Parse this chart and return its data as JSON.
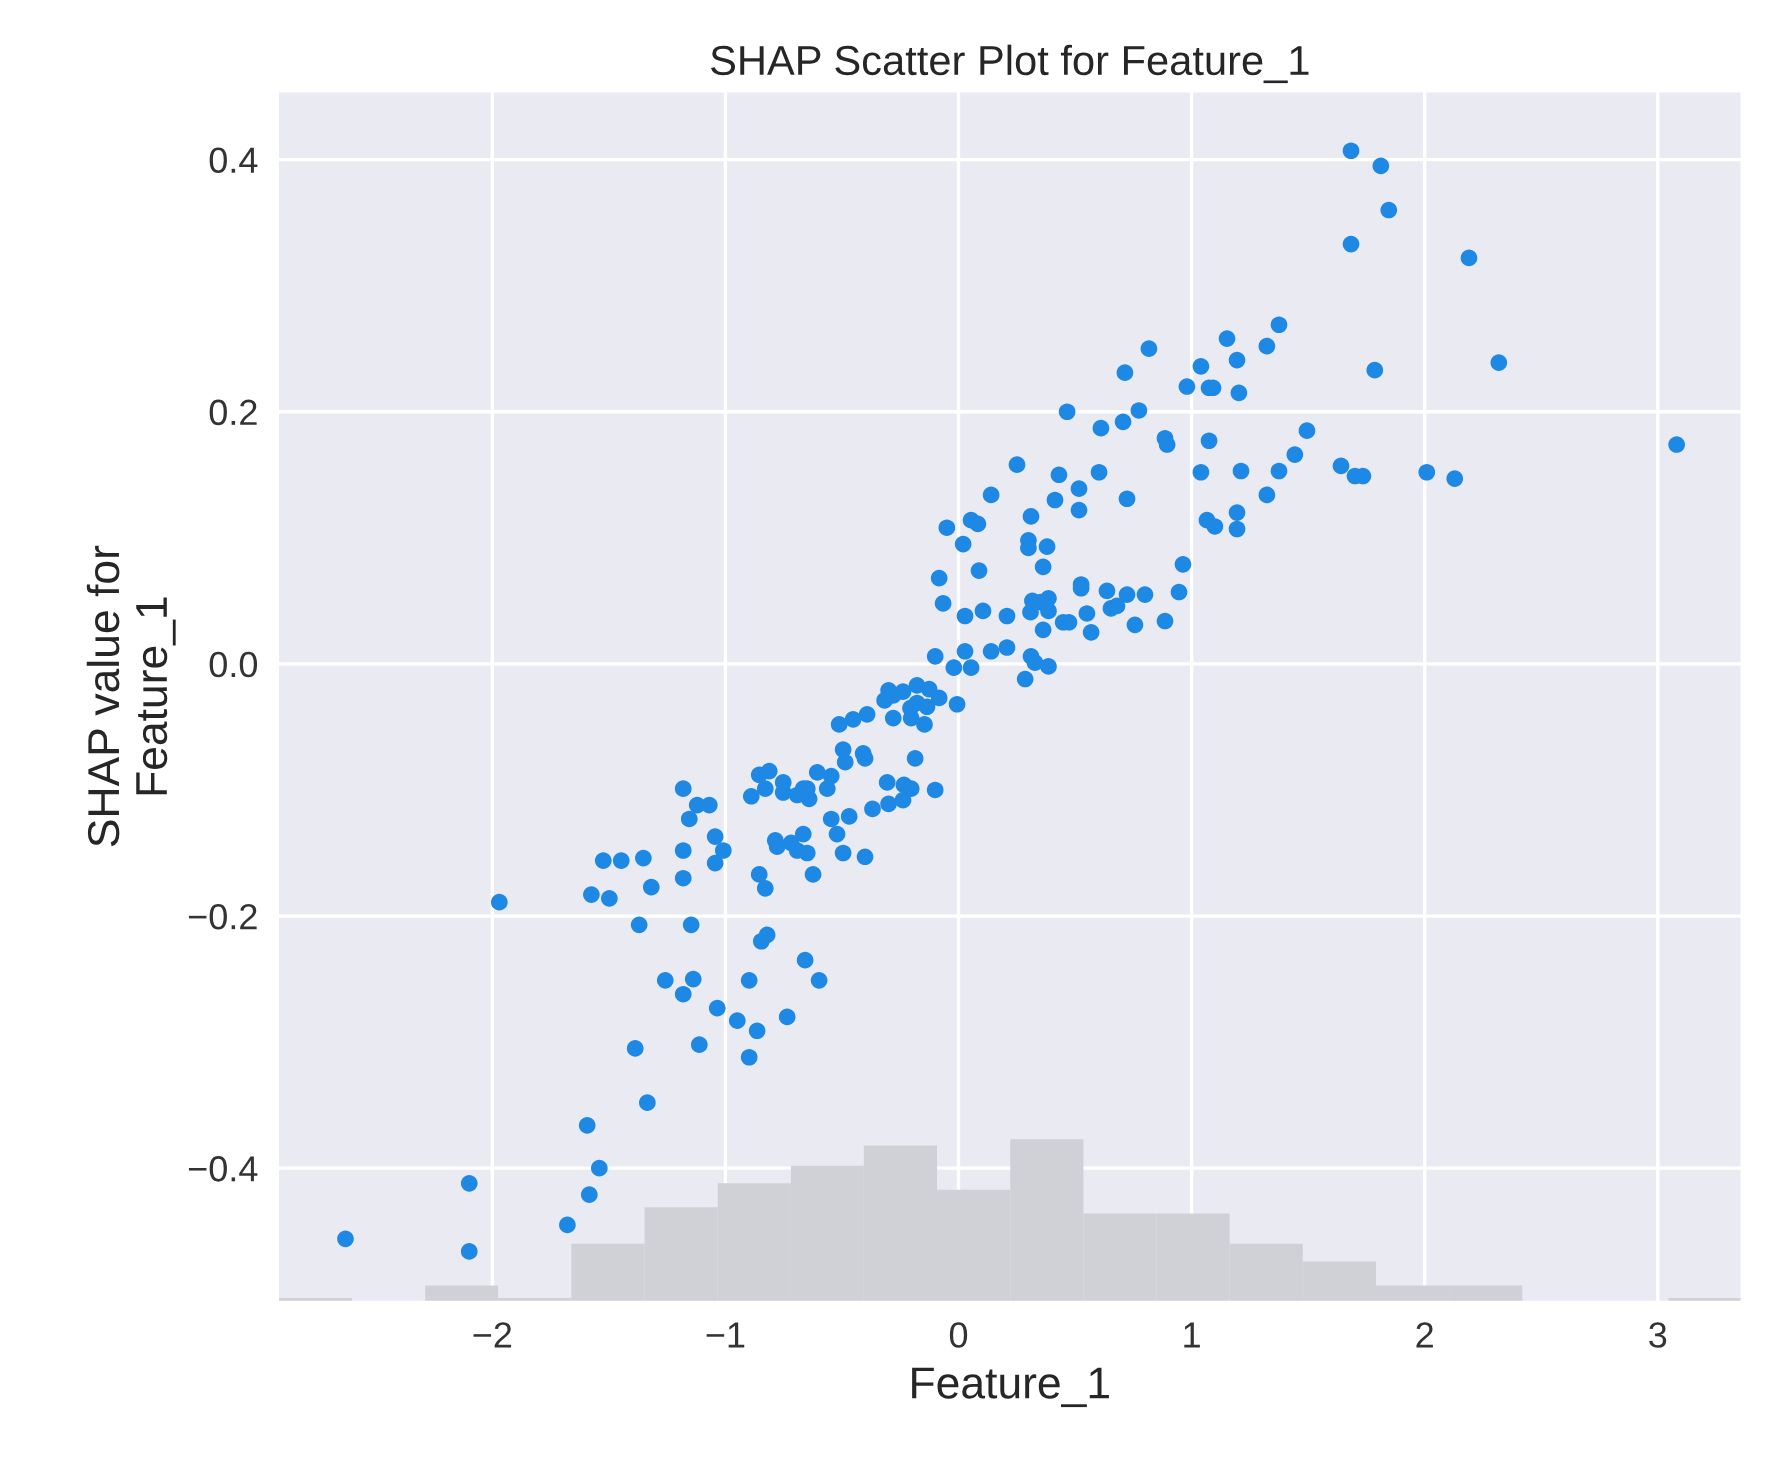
{
  "chart_data": {
    "type": "scatter",
    "title": "SHAP Scatter Plot for Feature_1",
    "xlabel": "Feature_1",
    "ylabel": "SHAP value for\nFeature_1",
    "xlim": [
      -2.92,
      3.36
    ],
    "ylim": [
      -0.506,
      0.454
    ],
    "xticks": [
      {
        "value": -2,
        "label": "−2"
      },
      {
        "value": -1,
        "label": "−1"
      },
      {
        "value": 0,
        "label": "0"
      },
      {
        "value": 1,
        "label": "1"
      },
      {
        "value": 2,
        "label": "2"
      },
      {
        "value": 3,
        "label": "3"
      }
    ],
    "yticks": [
      {
        "value": -0.4,
        "label": "−0.4"
      },
      {
        "value": -0.2,
        "label": "−0.2"
      },
      {
        "value": 0,
        "label": "0.0"
      },
      {
        "value": 0.2,
        "label": "0.2"
      },
      {
        "value": 0.4,
        "label": "0.4"
      }
    ],
    "grid": true,
    "marker": "circle",
    "series": [
      {
        "type": "histogram",
        "color": "#d0d1d6",
        "bins": [
          -2.916,
          -2.602,
          -2.288,
          -1.975,
          -1.661,
          -1.347,
          -1.033,
          -0.719,
          -0.406,
          -0.092,
          0.222,
          0.536,
          0.85,
          1.163,
          1.477,
          1.791,
          2.105,
          2.419,
          2.732,
          3.046,
          3.36
        ],
        "base": [
          -0.506,
          null,
          -0.506,
          -0.506,
          -0.506,
          -0.506,
          -0.506,
          -0.506,
          -0.506,
          -0.506,
          -0.506,
          -0.506,
          -0.506,
          -0.506,
          -0.506,
          -0.506,
          -0.506,
          null,
          null,
          -0.506
        ],
        "values": [
          0.003,
          null,
          0.013,
          0.003,
          0.046,
          0.075,
          0.094,
          0.108,
          0.124,
          0.089,
          0.129,
          0.07,
          0.07,
          0.046,
          0.032,
          0.013,
          0.013,
          null,
          null,
          0.003
        ]
      },
      {
        "color": "#1e88e5",
        "x": [
          -0.05,
          0.02,
          0.054,
          0.083,
          -0.083,
          0.088,
          -0.066,
          0.028,
          -0.1,
          0.028,
          -0.02,
          0.054,
          1.684,
          1.812,
          1.846,
          1.684,
          2.19,
          2.318,
          1.786,
          1.375,
          1.323,
          1.152,
          1.195,
          1.203,
          1.04,
          0.98,
          1.075,
          1.092,
          0.817,
          0.714,
          0.466,
          0.774,
          0.706,
          0.611,
          0.886,
          0.895,
          1.075,
          1.495,
          1.443,
          1.375,
          1.212,
          1.04,
          1.641,
          1.701,
          1.735,
          2.009,
          2.129,
          3.081,
          1.323,
          1.195,
          1.195,
          1.066,
          1.1,
          0.963,
          0.946,
          0.886,
          0.8,
          0.723,
          0.637,
          0.654,
          0.68,
          0.757,
          0.526,
          0.526,
          0.551,
          0.569,
          0.449,
          0.474,
          0.363,
          0.317,
          0.386,
          0.352,
          0.309,
          0.386,
          0.363,
          0.38,
          0.3,
          0.3,
          0.311,
          0.414,
          0.517,
          0.517,
          0.431,
          0.603,
          0.723,
          0.251,
          0.14,
          0.105,
          0.208,
          0.208,
          0.14,
          0.286,
          0.311,
          0.328,
          0.386,
          -0.178,
          -0.126,
          -0.3,
          -0.238,
          -0.317,
          -0.28,
          -0.178,
          -0.135,
          -0.083,
          -0.203,
          -0.146,
          -0.006,
          -0.28,
          -0.206,
          -0.392,
          -0.452,
          -0.512,
          -0.495,
          -0.486,
          -0.409,
          -0.401,
          -0.186,
          -0.606,
          -0.546,
          -0.563,
          -0.306,
          -0.234,
          -0.203,
          -0.238,
          -0.3,
          -0.1,
          -0.369,
          -0.546,
          -0.469,
          -0.521,
          -0.495,
          -0.401,
          -0.855,
          -0.812,
          -0.889,
          -0.829,
          -0.752,
          -0.752,
          -0.692,
          -0.666,
          -0.641,
          -0.649,
          -1.181,
          -1.121,
          -1.069,
          -1.155,
          -1.044,
          -1.009,
          -1.044,
          -1.181,
          -1.181,
          -1.524,
          -1.447,
          -1.352,
          -1.318,
          -1.575,
          -1.498,
          -1.97,
          -0.786,
          -0.778,
          -0.718,
          -0.666,
          -0.692,
          -0.649,
          -0.624,
          -0.855,
          -0.829,
          -1.37,
          -1.147,
          -0.846,
          -0.821,
          -0.658,
          -0.598,
          -1.258,
          -1.138,
          -1.181,
          -0.898,
          -1.035,
          -0.949,
          -0.864,
          -0.735,
          -1.387,
          -1.112,
          -0.898,
          -1.335,
          -1.593,
          -1.541,
          -1.584,
          -1.678,
          -2.099,
          -2.099,
          -2.63
        ],
        "values": [
          0.108,
          0.095,
          0.114,
          0.111,
          0.068,
          0.074,
          0.048,
          0.038,
          0.006,
          0.01,
          -0.003,
          -0.003,
          0.407,
          0.395,
          0.36,
          0.333,
          0.322,
          0.239,
          0.233,
          0.269,
          0.252,
          0.258,
          0.241,
          0.215,
          0.236,
          0.22,
          0.219,
          0.219,
          0.25,
          0.231,
          0.2,
          0.201,
          0.192,
          0.187,
          0.179,
          0.174,
          0.177,
          0.185,
          0.166,
          0.153,
          0.153,
          0.152,
          0.157,
          0.149,
          0.149,
          0.152,
          0.147,
          0.174,
          0.134,
          0.12,
          0.107,
          0.114,
          0.109,
          0.079,
          0.057,
          0.034,
          0.055,
          0.055,
          0.058,
          0.044,
          0.046,
          0.031,
          0.063,
          0.06,
          0.04,
          0.025,
          0.033,
          0.033,
          0.027,
          0.05,
          0.052,
          0.049,
          0.041,
          0.042,
          0.077,
          0.093,
          0.098,
          0.092,
          0.117,
          0.13,
          0.139,
          0.122,
          0.15,
          0.152,
          0.131,
          0.158,
          0.134,
          0.042,
          0.038,
          0.013,
          0.01,
          -0.012,
          0.006,
          0.001,
          -0.002,
          -0.017,
          -0.02,
          -0.021,
          -0.022,
          -0.029,
          -0.025,
          -0.031,
          -0.034,
          -0.027,
          -0.043,
          -0.048,
          -0.032,
          -0.043,
          -0.035,
          -0.04,
          -0.044,
          -0.048,
          -0.068,
          -0.078,
          -0.071,
          -0.075,
          -0.075,
          -0.086,
          -0.089,
          -0.099,
          -0.094,
          -0.096,
          -0.099,
          -0.108,
          -0.111,
          -0.1,
          -0.115,
          -0.123,
          -0.121,
          -0.135,
          -0.15,
          -0.153,
          -0.088,
          -0.085,
          -0.105,
          -0.099,
          -0.094,
          -0.102,
          -0.104,
          -0.099,
          -0.107,
          -0.099,
          -0.099,
          -0.112,
          -0.112,
          -0.123,
          -0.137,
          -0.148,
          -0.158,
          -0.148,
          -0.17,
          -0.156,
          -0.156,
          -0.154,
          -0.177,
          -0.183,
          -0.186,
          -0.189,
          -0.14,
          -0.145,
          -0.142,
          -0.135,
          -0.148,
          -0.15,
          -0.167,
          -0.167,
          -0.178,
          -0.207,
          -0.207,
          -0.22,
          -0.215,
          -0.235,
          -0.251,
          -0.251,
          -0.25,
          -0.262,
          -0.251,
          -0.273,
          -0.283,
          -0.291,
          -0.28,
          -0.305,
          -0.302,
          -0.312,
          -0.348,
          -0.366,
          -0.4,
          -0.421,
          -0.445,
          -0.412,
          -0.466,
          -0.456
        ]
      }
    ]
  }
}
